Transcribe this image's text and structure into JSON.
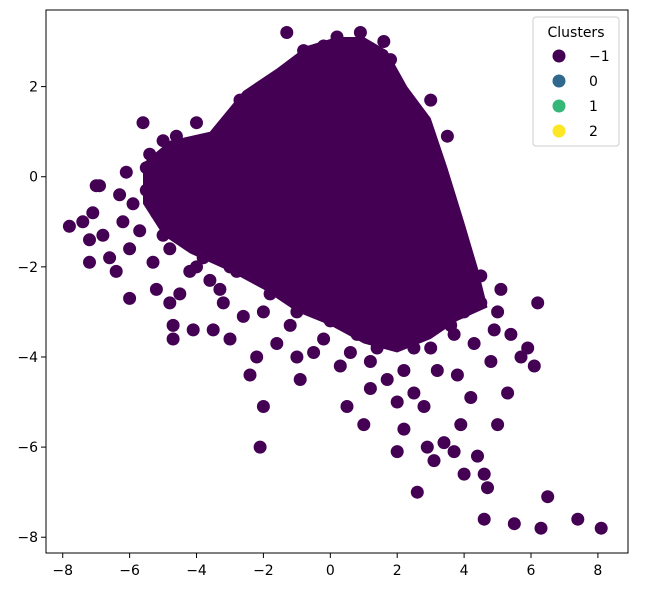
{
  "chart_data": {
    "type": "scatter",
    "title": "",
    "xlabel": "",
    "ylabel": "",
    "xlim": [
      -8.5,
      8.9
    ],
    "ylim": [
      -8.35,
      3.7
    ],
    "xticks": [
      -8,
      -6,
      -4,
      -2,
      0,
      2,
      4,
      6,
      8
    ],
    "yticks": [
      -8,
      -6,
      -4,
      -2,
      0,
      2
    ],
    "grid": false,
    "legend": {
      "title": "Clusters",
      "placement": "top-right",
      "entries": [
        {
          "label": "−1",
          "color": "#440154"
        },
        {
          "label": "0",
          "color": "#31688e"
        },
        {
          "label": "1",
          "color": "#35b779"
        },
        {
          "label": "2",
          "color": "#fde725"
        }
      ]
    },
    "series": [
      {
        "cluster": -1,
        "color": "#440154",
        "points": [
          [
            -7.8,
            -1.1
          ],
          [
            -7.4,
            -1.0
          ],
          [
            -7.2,
            -1.4
          ],
          [
            -7.2,
            -1.9
          ],
          [
            -7.1,
            -0.8
          ],
          [
            -7.0,
            -0.2
          ],
          [
            -6.9,
            -0.2
          ],
          [
            -6.8,
            -1.3
          ],
          [
            -6.6,
            -1.8
          ],
          [
            -6.4,
            -2.1
          ],
          [
            -6.3,
            -0.4
          ],
          [
            -6.2,
            -1.0
          ],
          [
            -6.1,
            0.1
          ],
          [
            -6.0,
            -2.7
          ],
          [
            -6.0,
            -1.6
          ],
          [
            -5.9,
            -0.6
          ],
          [
            -5.7,
            -1.2
          ],
          [
            -5.6,
            1.2
          ],
          [
            -5.5,
            -0.3
          ],
          [
            -5.4,
            0.5
          ],
          [
            -5.3,
            -1.9
          ],
          [
            -5.2,
            -2.5
          ],
          [
            -5.0,
            -1.3
          ],
          [
            -5.0,
            0.8
          ],
          [
            -4.8,
            -2.8
          ],
          [
            -4.7,
            -3.6
          ],
          [
            -4.7,
            -3.3
          ],
          [
            -4.6,
            0.9
          ],
          [
            -4.5,
            -2.6
          ],
          [
            -4.4,
            -0.9
          ],
          [
            -4.2,
            -2.1
          ],
          [
            -4.1,
            -3.4
          ],
          [
            -4.0,
            1.2
          ],
          [
            -3.9,
            0.6
          ],
          [
            -3.8,
            -1.8
          ],
          [
            -3.6,
            -2.3
          ],
          [
            -3.5,
            -3.4
          ],
          [
            -3.3,
            0.3
          ],
          [
            -3.2,
            -2.8
          ],
          [
            -3.0,
            -3.6
          ],
          [
            -2.9,
            0.9
          ],
          [
            -2.8,
            -2.1
          ],
          [
            -2.7,
            1.7
          ],
          [
            -2.6,
            -3.1
          ],
          [
            -2.5,
            -0.4
          ],
          [
            -2.4,
            -4.4
          ],
          [
            -2.2,
            -4.0
          ],
          [
            -2.1,
            -6.0
          ],
          [
            -2.0,
            -5.1
          ],
          [
            -1.9,
            1.3
          ],
          [
            -1.8,
            -2.6
          ],
          [
            -1.6,
            -3.7
          ],
          [
            -1.5,
            0.2
          ],
          [
            -1.3,
            3.2
          ],
          [
            -1.2,
            -3.3
          ],
          [
            -1.0,
            -4.0
          ],
          [
            -0.9,
            -4.5
          ],
          [
            -0.8,
            -2.2
          ],
          [
            -0.6,
            2.6
          ],
          [
            -0.5,
            -3.9
          ],
          [
            -0.4,
            1.0
          ],
          [
            -0.3,
            -1.4
          ],
          [
            -0.2,
            2.9
          ],
          [
            0.0,
            -3.2
          ],
          [
            0.2,
            3.1
          ],
          [
            0.3,
            -4.2
          ],
          [
            0.4,
            -1.0
          ],
          [
            0.5,
            -5.1
          ],
          [
            0.6,
            2.4
          ],
          [
            0.8,
            -3.5
          ],
          [
            0.9,
            3.2
          ],
          [
            1.0,
            -5.5
          ],
          [
            1.1,
            -0.6
          ],
          [
            1.2,
            -4.7
          ],
          [
            1.3,
            2.0
          ],
          [
            1.4,
            -3.8
          ],
          [
            1.6,
            3.0
          ],
          [
            1.7,
            -4.5
          ],
          [
            1.8,
            -1.6
          ],
          [
            2.0,
            -5.0
          ],
          [
            2.0,
            -6.1
          ],
          [
            2.2,
            -5.6
          ],
          [
            2.3,
            1.4
          ],
          [
            2.4,
            -3.0
          ],
          [
            2.5,
            -4.8
          ],
          [
            2.6,
            -7.0
          ],
          [
            2.7,
            0.2
          ],
          [
            2.8,
            -5.1
          ],
          [
            2.9,
            -6.0
          ],
          [
            3.0,
            1.7
          ],
          [
            3.1,
            -6.3
          ],
          [
            3.2,
            -4.3
          ],
          [
            3.3,
            -1.2
          ],
          [
            3.4,
            -5.9
          ],
          [
            3.5,
            0.9
          ],
          [
            3.6,
            -3.3
          ],
          [
            3.7,
            -6.1
          ],
          [
            3.8,
            -4.4
          ],
          [
            3.9,
            -5.5
          ],
          [
            4.0,
            -6.6
          ],
          [
            4.1,
            -2.6
          ],
          [
            4.2,
            -4.9
          ],
          [
            4.3,
            -3.7
          ],
          [
            4.4,
            -6.2
          ],
          [
            4.5,
            -2.2
          ],
          [
            4.6,
            -6.6
          ],
          [
            4.6,
            -7.6
          ],
          [
            4.7,
            -6.9
          ],
          [
            4.8,
            -4.1
          ],
          [
            4.9,
            -3.4
          ],
          [
            5.0,
            -5.5
          ],
          [
            5.1,
            -2.5
          ],
          [
            5.3,
            -4.8
          ],
          [
            5.4,
            -3.5
          ],
          [
            5.5,
            -7.7
          ],
          [
            5.7,
            -4.0
          ],
          [
            5.9,
            -3.8
          ],
          [
            6.1,
            -4.2
          ],
          [
            6.2,
            -2.8
          ],
          [
            6.3,
            -7.8
          ],
          [
            6.5,
            -7.1
          ],
          [
            7.4,
            -7.6
          ],
          [
            8.1,
            -7.8
          ],
          [
            -1.5,
            -1.0
          ],
          [
            -1.0,
            -0.5
          ],
          [
            -0.5,
            0.5
          ],
          [
            0.0,
            -0.5
          ],
          [
            0.5,
            0.8
          ],
          [
            1.0,
            0.2
          ],
          [
            1.5,
            -0.8
          ],
          [
            2.0,
            -1.5
          ],
          [
            2.5,
            -2.0
          ],
          [
            3.0,
            -2.5
          ],
          [
            3.5,
            -2.0
          ],
          [
            4.0,
            -3.0
          ],
          [
            -2.0,
            0.0
          ],
          [
            -2.5,
            0.5
          ],
          [
            -3.0,
            -0.5
          ],
          [
            -3.5,
            0.0
          ],
          [
            -4.0,
            -1.0
          ],
          [
            -4.5,
            0.0
          ],
          [
            -5.0,
            -0.5
          ],
          [
            -5.5,
            0.2
          ],
          [
            -1.0,
            2.0
          ],
          [
            -0.5,
            2.2
          ],
          [
            0.0,
            2.5
          ],
          [
            0.5,
            2.0
          ],
          [
            1.0,
            1.5
          ],
          [
            1.5,
            1.0
          ],
          [
            2.0,
            0.5
          ],
          [
            -1.5,
            1.5
          ],
          [
            -2.0,
            1.0
          ],
          [
            -2.5,
            -1.5
          ],
          [
            -1.5,
            -2.5
          ],
          [
            -1.0,
            -3.0
          ],
          [
            -0.5,
            -2.8
          ],
          [
            0.0,
            -2.0
          ],
          [
            0.5,
            -2.5
          ],
          [
            1.0,
            -3.0
          ],
          [
            1.5,
            -2.6
          ],
          [
            2.0,
            -3.5
          ],
          [
            2.5,
            -3.8
          ],
          [
            3.0,
            -3.8
          ],
          [
            -3.0,
            -2.0
          ],
          [
            -3.5,
            -1.5
          ],
          [
            -4.0,
            -2.0
          ],
          [
            -2.0,
            -3.0
          ],
          [
            -0.5,
            -1.5
          ],
          [
            0.5,
            -1.2
          ],
          [
            1.5,
            -1.8
          ],
          [
            2.5,
            -1.0
          ],
          [
            3.0,
            -0.5
          ],
          [
            3.5,
            -1.5
          ],
          [
            4.0,
            -1.8
          ],
          [
            4.5,
            -2.8
          ],
          [
            5.0,
            -3.0
          ],
          [
            1.8,
            2.6
          ],
          [
            1.2,
            2.8
          ],
          [
            -0.8,
            2.8
          ],
          [
            0.3,
            1.2
          ],
          [
            -0.3,
            0.0
          ],
          [
            0.8,
            -0.3
          ],
          [
            -1.2,
            0.8
          ],
          [
            2.2,
            -2.2
          ],
          [
            2.8,
            -2.8
          ],
          [
            3.3,
            -3.2
          ],
          [
            -3.8,
            0.8
          ],
          [
            -4.3,
            0.4
          ],
          [
            -5.2,
            -0.8
          ],
          [
            -4.8,
            -1.6
          ],
          [
            -2.8,
            -1.0
          ],
          [
            -3.3,
            -2.5
          ],
          [
            -2.2,
            -2.2
          ],
          [
            1.2,
            -4.1
          ],
          [
            0.6,
            -3.9
          ],
          [
            -0.2,
            -3.6
          ],
          [
            2.2,
            -4.3
          ],
          [
            3.7,
            -3.5
          ],
          [
            4.3,
            -2.4
          ],
          [
            -1.7,
            0.4
          ],
          [
            -0.7,
            -0.8
          ],
          [
            0.2,
            0.4
          ],
          [
            1.7,
            0.0
          ]
        ]
      }
    ]
  }
}
